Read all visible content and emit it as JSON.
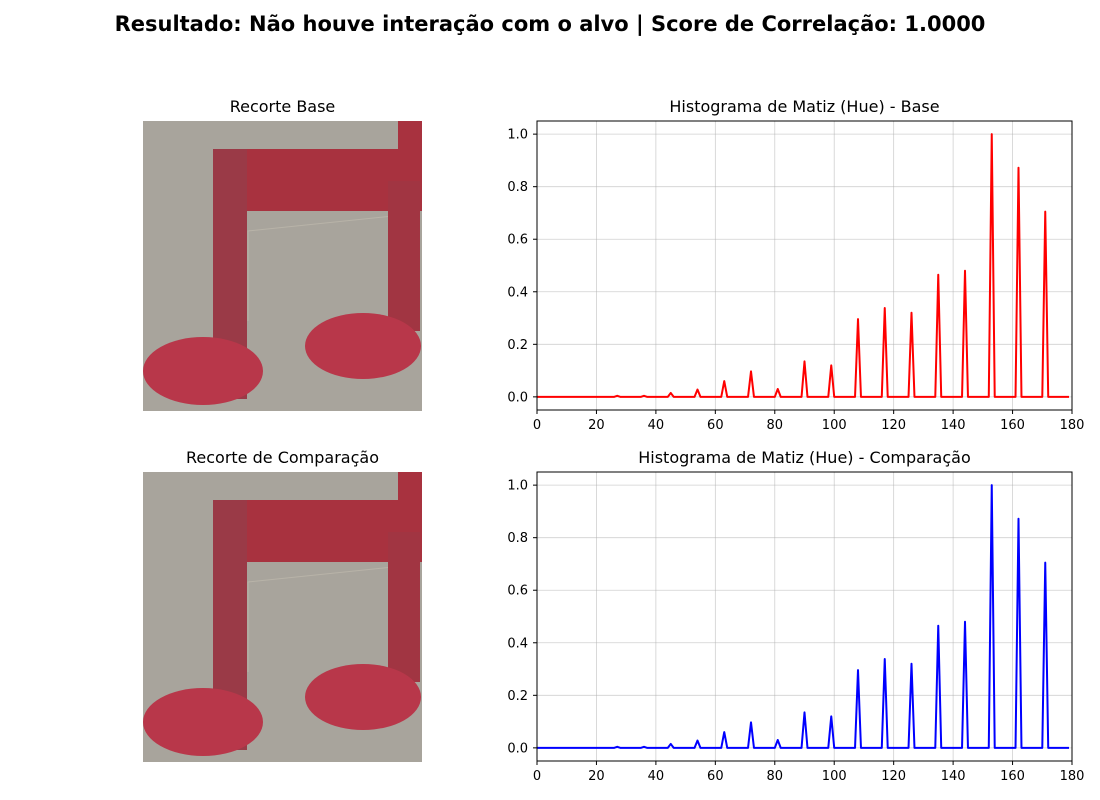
{
  "suptitle": "Resultado: Não houve interação com o alvo | Score de Correlação: 1.0000",
  "panels": {
    "base_image_title": "Recorte Base",
    "compare_image_title": "Recorte de Comparação",
    "base_hist_title": "Histograma de Matiz (Hue) - Base",
    "compare_hist_title": "Histograma de Matiz (Hue) - Comparação"
  },
  "colors": {
    "base_line": "#ff0000",
    "compare_line": "#0000ff",
    "note_red": "#a8323f",
    "note_bg": "#a39f98"
  },
  "image_content": "music-note-icon",
  "chart_data": [
    {
      "type": "line",
      "title": "Histograma de Matiz (Hue) - Base",
      "xlabel": "",
      "ylabel": "",
      "xlim": [
        0,
        180
      ],
      "ylim": [
        -0.05,
        1.05
      ],
      "xticks": [
        0,
        20,
        40,
        60,
        80,
        100,
        120,
        140,
        160,
        180
      ],
      "yticks": [
        0.0,
        0.2,
        0.4,
        0.6,
        0.8,
        1.0
      ],
      "grid": true,
      "series": [
        {
          "color": "#ff0000",
          "peaks": [
            [
              27,
              0.004
            ],
            [
              36,
              0.004
            ],
            [
              45,
              0.015
            ],
            [
              54,
              0.028
            ],
            [
              63,
              0.06
            ],
            [
              72,
              0.097
            ],
            [
              81,
              0.03
            ],
            [
              90,
              0.135
            ],
            [
              99,
              0.12
            ],
            [
              108,
              0.296
            ],
            [
              117,
              0.338
            ],
            [
              126,
              0.32
            ],
            [
              135,
              0.465
            ],
            [
              144,
              0.48
            ],
            [
              153,
              1.0
            ],
            [
              162,
              0.872
            ],
            [
              171,
              0.705
            ]
          ]
        }
      ]
    },
    {
      "type": "line",
      "title": "Histograma de Matiz (Hue) - Comparação",
      "xlabel": "",
      "ylabel": "",
      "xlim": [
        0,
        180
      ],
      "ylim": [
        -0.05,
        1.05
      ],
      "xticks": [
        0,
        20,
        40,
        60,
        80,
        100,
        120,
        140,
        160,
        180
      ],
      "yticks": [
        0.0,
        0.2,
        0.4,
        0.6,
        0.8,
        1.0
      ],
      "grid": true,
      "series": [
        {
          "color": "#0000ff",
          "peaks": [
            [
              27,
              0.004
            ],
            [
              36,
              0.004
            ],
            [
              45,
              0.015
            ],
            [
              54,
              0.028
            ],
            [
              63,
              0.06
            ],
            [
              72,
              0.097
            ],
            [
              81,
              0.03
            ],
            [
              90,
              0.135
            ],
            [
              99,
              0.12
            ],
            [
              108,
              0.296
            ],
            [
              117,
              0.338
            ],
            [
              126,
              0.32
            ],
            [
              135,
              0.465
            ],
            [
              144,
              0.48
            ],
            [
              153,
              1.0
            ],
            [
              162,
              0.872
            ],
            [
              171,
              0.705
            ]
          ]
        }
      ]
    }
  ]
}
